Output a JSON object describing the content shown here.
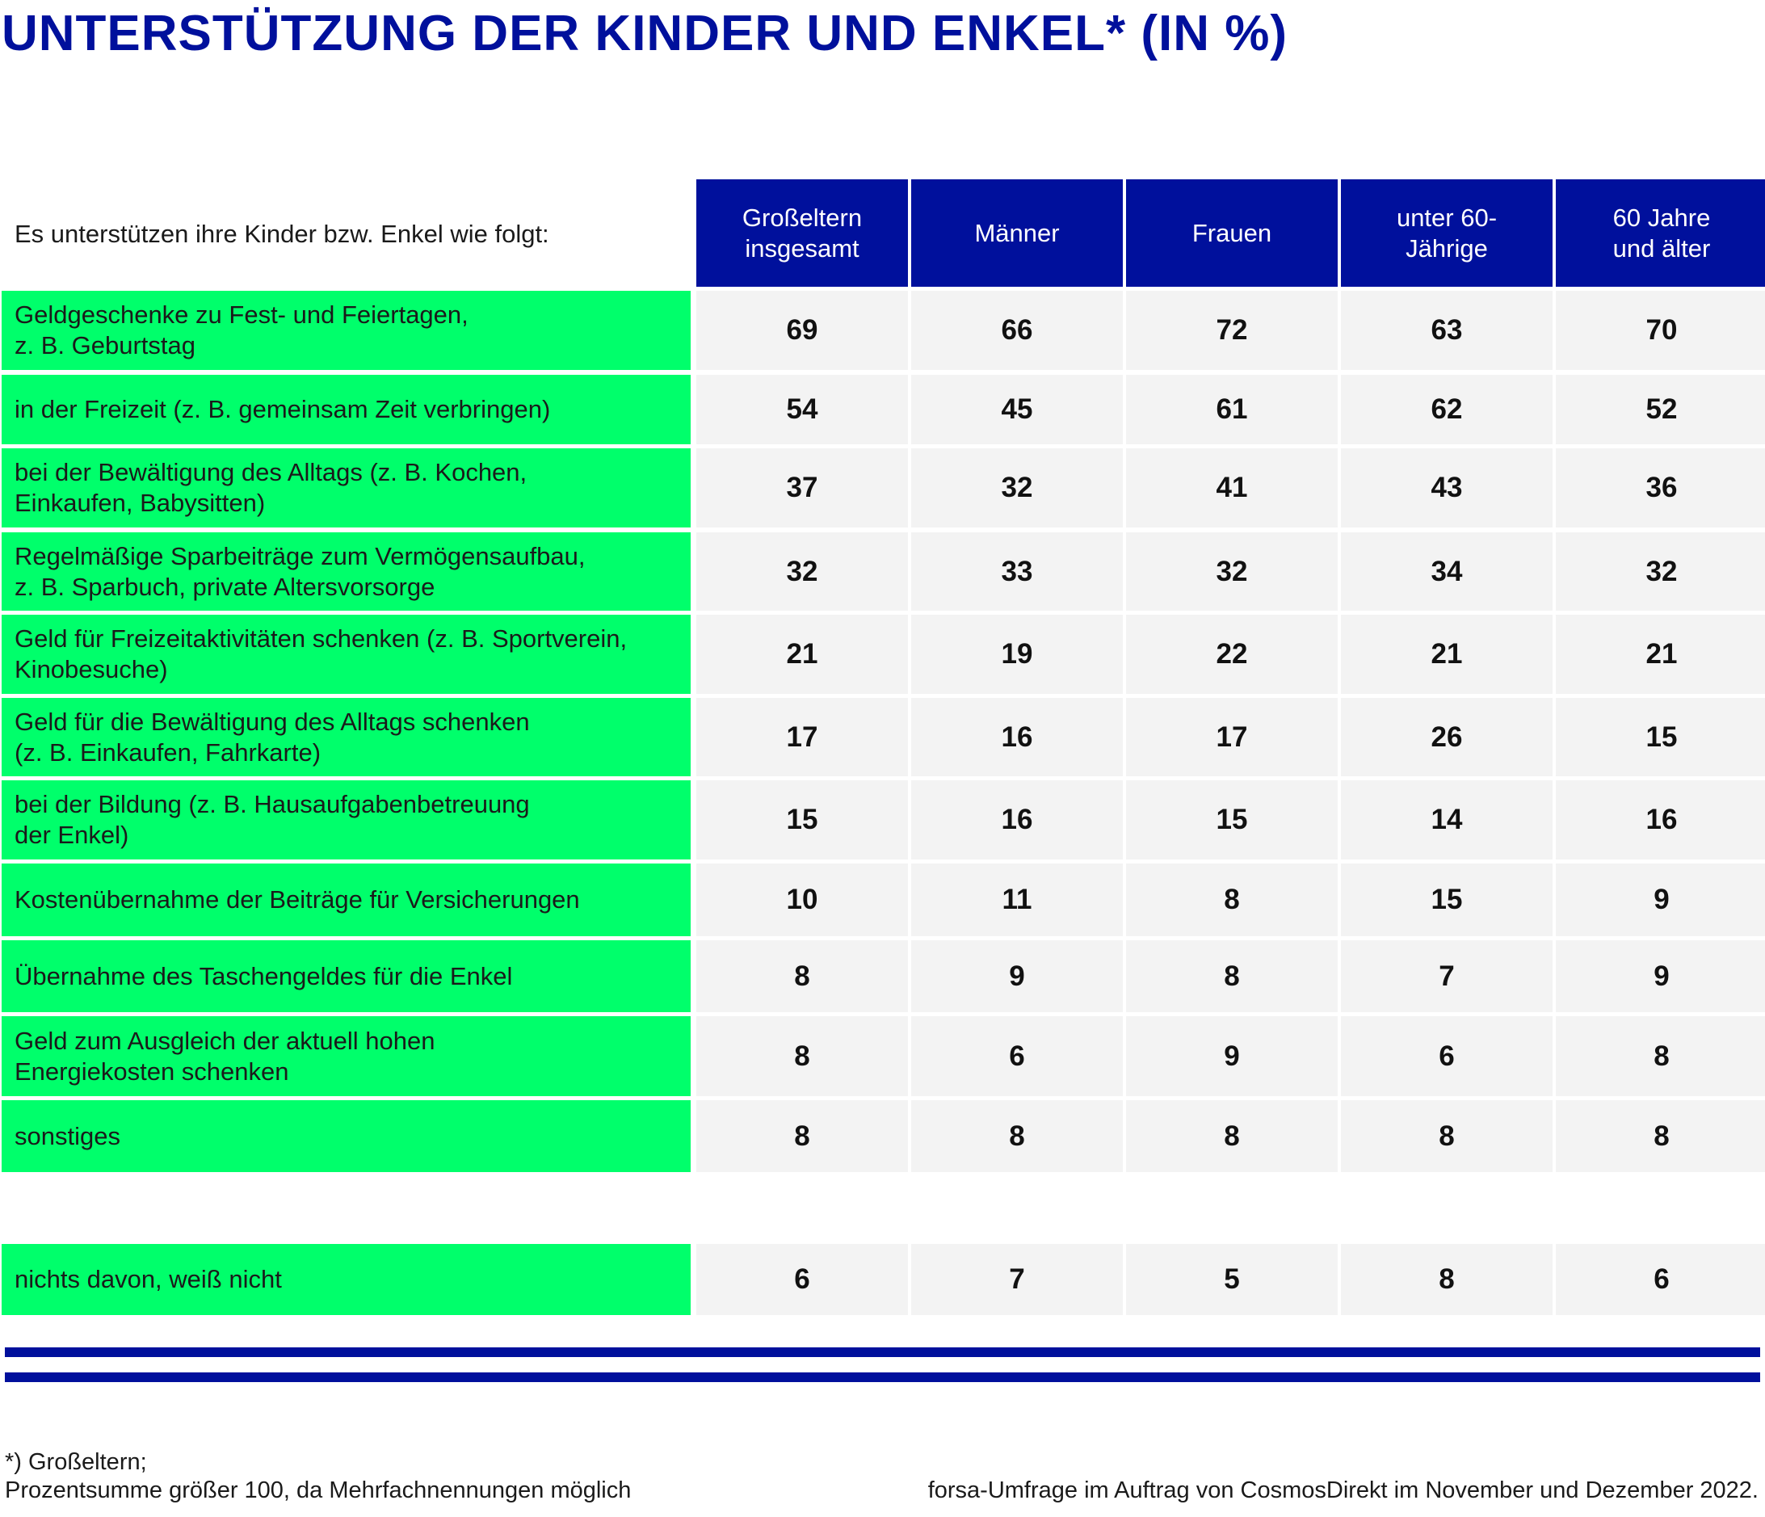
{
  "title": "UNTERSTÜTZUNG DER KINDER UND ENKEL* (IN %)",
  "intro": "Es unterstützen ihre Kinder bzw. Enkel wie folgt:",
  "colors": {
    "header_blue": "#00109c",
    "label_green": "#00ff6b",
    "cell_grey": "#f3f3f3"
  },
  "footnote_left": "*) Großeltern;\nProzentsumme größer 100, da Mehrfachnennungen möglich",
  "footnote_right": "forsa-Umfrage im Auftrag von CosmosDirekt im November und Dezember 2022.",
  "chart_data": {
    "type": "table",
    "title": "UNTERSTÜTZUNG DER KINDER UND ENKEL* (IN %)",
    "columns": [
      "Großeltern\ninsgesamt",
      "Männer",
      "Frauen",
      "unter 60-\nJährige",
      "60 Jahre\nund älter"
    ],
    "rows": [
      {
        "label": "Geldgeschenke zu Fest- und Feiertagen,\nz. B. Geburtstag",
        "values": [
          69,
          66,
          72,
          63,
          70
        ]
      },
      {
        "label": "in der Freizeit (z. B. gemeinsam Zeit verbringen)",
        "values": [
          54,
          45,
          61,
          62,
          52
        ]
      },
      {
        "label": "bei der Bewältigung des Alltags (z. B. Kochen,\nEinkaufen, Babysitten)",
        "values": [
          37,
          32,
          41,
          43,
          36
        ]
      },
      {
        "label": "Regelmäßige Sparbeiträge zum Vermögensaufbau,\nz. B. Sparbuch, private Altersvorsorge",
        "values": [
          32,
          33,
          32,
          34,
          32
        ]
      },
      {
        "label": "Geld für Freizeitaktivitäten schenken (z. B. Sportverein,\nKinobesuche)",
        "values": [
          21,
          19,
          22,
          21,
          21
        ]
      },
      {
        "label": "Geld für die Bewältigung des Alltags schenken\n(z. B. Einkaufen, Fahrkarte)",
        "values": [
          17,
          16,
          17,
          26,
          15
        ]
      },
      {
        "label": "bei der Bildung (z. B. Hausaufgabenbetreuung\nder Enkel)",
        "values": [
          15,
          16,
          15,
          14,
          16
        ]
      },
      {
        "label": "Kostenübernahme der Beiträge für Versicherungen",
        "values": [
          10,
          11,
          8,
          15,
          9
        ]
      },
      {
        "label": "Übernahme des Taschengeldes für die Enkel",
        "values": [
          8,
          9,
          8,
          7,
          9
        ]
      },
      {
        "label": "Geld zum Ausgleich der aktuell hohen\nEnergiekosten schenken",
        "values": [
          8,
          6,
          9,
          6,
          8
        ]
      },
      {
        "label": "sonstiges",
        "values": [
          8,
          8,
          8,
          8,
          8
        ]
      }
    ],
    "extra_row": {
      "label": "nichts davon, weiß nicht",
      "values": [
        6,
        7,
        5,
        8,
        6
      ]
    }
  }
}
